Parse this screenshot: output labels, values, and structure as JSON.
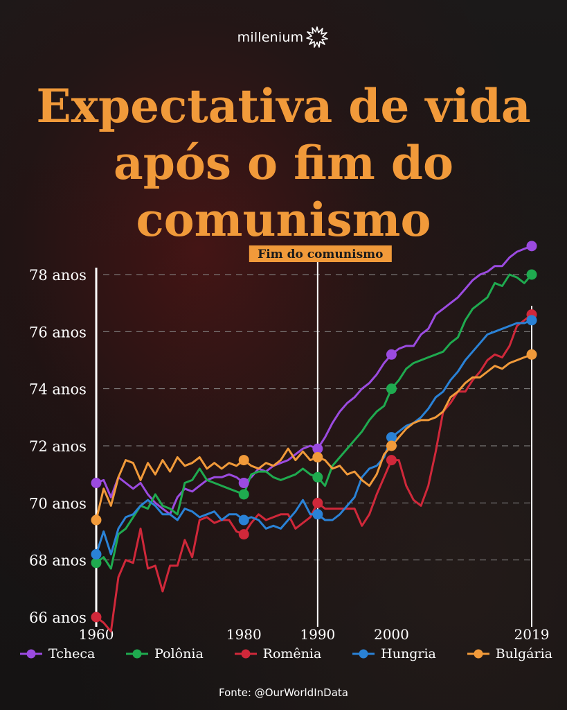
{
  "brand": {
    "name": "millenium",
    "logo_icon": "sunburst-icon"
  },
  "title": {
    "line1": "Expectativa de vida",
    "line2": "após o fim do",
    "line3": "comunismo"
  },
  "source": "Fonte: @OurWorldInData",
  "colors": {
    "title": "#f19a3a",
    "background": "#141212",
    "Tcheca": "#9b4be0",
    "Polônia": "#1faa4f",
    "Romênia": "#d0283a",
    "Hungria": "#2a82d6",
    "Bulgária": "#f19a3a",
    "annotation_bg": "#f19a3a"
  },
  "chart_data": {
    "type": "line",
    "x_ticks": [
      {
        "value": 1960,
        "label": "1960"
      },
      {
        "value": 1980,
        "label": "1980"
      },
      {
        "value": 1990,
        "label": "1990"
      },
      {
        "value": 2000,
        "label": "2000"
      },
      {
        "value": 2019,
        "label": "2019"
      }
    ],
    "y_ticks": [
      {
        "value": 66,
        "label": "66 anos"
      },
      {
        "value": 68,
        "label": "68 anos"
      },
      {
        "value": 70,
        "label": "70 anos"
      },
      {
        "value": 72,
        "label": "72 anos"
      },
      {
        "value": 74,
        "label": "74 anos"
      },
      {
        "value": 76,
        "label": "76 anos"
      },
      {
        "value": 78,
        "label": "78 anos"
      }
    ],
    "xlim": [
      1960,
      2019
    ],
    "ylim": [
      66,
      78
    ],
    "grid": "horizontal dashed",
    "legend_position": "bottom",
    "annotation": {
      "x": 1990,
      "label": "Fim do comunismo"
    },
    "marker_years": [
      1960,
      1980,
      1990,
      2000,
      2019
    ],
    "series": [
      {
        "name": "Tcheca",
        "x": [
          1960,
          1961,
          1962,
          1963,
          1964,
          1965,
          1966,
          1967,
          1968,
          1969,
          1970,
          1971,
          1972,
          1973,
          1974,
          1975,
          1976,
          1977,
          1978,
          1979,
          1980,
          1981,
          1982,
          1983,
          1984,
          1985,
          1986,
          1987,
          1988,
          1989,
          1990,
          1991,
          1992,
          1993,
          1994,
          1995,
          1996,
          1997,
          1998,
          1999,
          2000,
          2001,
          2002,
          2003,
          2004,
          2005,
          2006,
          2007,
          2008,
          2009,
          2010,
          2011,
          2012,
          2013,
          2014,
          2015,
          2016,
          2017,
          2018,
          2019
        ],
        "y": [
          70.7,
          70.8,
          70.2,
          70.9,
          70.7,
          70.5,
          70.7,
          70.3,
          70.0,
          69.8,
          69.6,
          70.2,
          70.5,
          70.4,
          70.6,
          70.8,
          70.9,
          70.9,
          71.0,
          70.9,
          70.7,
          70.9,
          71.2,
          71.1,
          71.3,
          71.4,
          71.5,
          71.7,
          71.9,
          72.0,
          71.9,
          72.3,
          72.8,
          73.2,
          73.5,
          73.7,
          74.0,
          74.2,
          74.5,
          74.9,
          75.2,
          75.4,
          75.5,
          75.5,
          75.9,
          76.1,
          76.6,
          76.8,
          77.0,
          77.2,
          77.5,
          77.8,
          78.0,
          78.1,
          78.3,
          78.3,
          78.6,
          78.8,
          78.9,
          79.0
        ]
      },
      {
        "name": "Polônia",
        "x": [
          1960,
          1961,
          1962,
          1963,
          1964,
          1965,
          1966,
          1967,
          1968,
          1969,
          1970,
          1971,
          1972,
          1973,
          1974,
          1975,
          1976,
          1977,
          1978,
          1979,
          1980,
          1981,
          1982,
          1983,
          1984,
          1985,
          1986,
          1987,
          1988,
          1989,
          1990,
          1991,
          1992,
          1993,
          1994,
          1995,
          1996,
          1997,
          1998,
          1999,
          2000,
          2001,
          2002,
          2003,
          2004,
          2005,
          2006,
          2007,
          2008,
          2009,
          2010,
          2011,
          2012,
          2013,
          2014,
          2015,
          2016,
          2017,
          2018,
          2019
        ],
        "y": [
          67.9,
          68.1,
          67.7,
          68.9,
          69.1,
          69.5,
          69.9,
          69.8,
          70.3,
          69.9,
          69.8,
          69.6,
          70.7,
          70.8,
          71.2,
          70.8,
          70.7,
          70.6,
          70.5,
          70.4,
          70.3,
          71.0,
          71.1,
          71.1,
          70.9,
          70.8,
          70.9,
          71.0,
          71.2,
          71.0,
          70.9,
          70.6,
          71.3,
          71.6,
          71.9,
          72.2,
          72.5,
          72.9,
          73.2,
          73.4,
          74.0,
          74.3,
          74.7,
          74.9,
          75.0,
          75.1,
          75.2,
          75.3,
          75.6,
          75.8,
          76.4,
          76.8,
          77.0,
          77.2,
          77.7,
          77.6,
          78.0,
          77.9,
          77.7,
          78.0
        ]
      },
      {
        "name": "Romênia",
        "x": [
          1960,
          1961,
          1962,
          1963,
          1964,
          1965,
          1966,
          1967,
          1968,
          1969,
          1970,
          1971,
          1972,
          1973,
          1974,
          1975,
          1976,
          1977,
          1978,
          1979,
          1980,
          1981,
          1982,
          1983,
          1984,
          1985,
          1986,
          1987,
          1988,
          1989,
          1990,
          1991,
          1992,
          1993,
          1994,
          1995,
          1996,
          1997,
          1998,
          1999,
          2000,
          2001,
          2002,
          2003,
          2004,
          2005,
          2006,
          2007,
          2008,
          2009,
          2010,
          2011,
          2012,
          2013,
          2014,
          2015,
          2016,
          2017,
          2018,
          2019
        ],
        "y": [
          66.0,
          65.8,
          65.5,
          67.4,
          68.0,
          67.9,
          69.1,
          67.7,
          67.8,
          66.9,
          67.8,
          67.8,
          68.7,
          68.1,
          69.4,
          69.5,
          69.3,
          69.4,
          69.4,
          69.0,
          68.9,
          69.3,
          69.6,
          69.4,
          69.5,
          69.6,
          69.6,
          69.1,
          69.3,
          69.5,
          70.0,
          69.8,
          69.8,
          69.8,
          69.8,
          69.8,
          69.2,
          69.6,
          70.3,
          70.9,
          71.5,
          71.5,
          70.6,
          70.1,
          69.9,
          70.6,
          71.8,
          73.2,
          73.5,
          73.9,
          73.9,
          74.3,
          74.6,
          75.0,
          75.2,
          75.1,
          75.5,
          76.2,
          76.4,
          76.6
        ]
      },
      {
        "name": "Hungria",
        "x": [
          1960,
          1961,
          1962,
          1963,
          1964,
          1965,
          1966,
          1967,
          1968,
          1969,
          1970,
          1971,
          1972,
          1973,
          1974,
          1975,
          1976,
          1977,
          1978,
          1979,
          1980,
          1981,
          1982,
          1983,
          1984,
          1985,
          1986,
          1987,
          1988,
          1989,
          1990,
          1991,
          1992,
          1993,
          1994,
          1995,
          1996,
          1997,
          1998,
          1999,
          2000,
          2001,
          2002,
          2003,
          2004,
          2005,
          2006,
          2007,
          2008,
          2009,
          2010,
          2011,
          2012,
          2013,
          2014,
          2015,
          2016,
          2017,
          2018,
          2019
        ],
        "y": [
          68.2,
          69.0,
          68.2,
          69.1,
          69.5,
          69.6,
          69.9,
          70.1,
          69.9,
          69.6,
          69.6,
          69.4,
          69.8,
          69.7,
          69.5,
          69.6,
          69.7,
          69.4,
          69.6,
          69.6,
          69.4,
          69.5,
          69.4,
          69.1,
          69.2,
          69.1,
          69.4,
          69.7,
          70.1,
          69.6,
          69.6,
          69.4,
          69.4,
          69.6,
          69.9,
          70.2,
          70.9,
          71.2,
          71.3,
          71.6,
          72.3,
          72.5,
          72.7,
          72.8,
          73.0,
          73.3,
          73.7,
          73.9,
          74.3,
          74.6,
          75.0,
          75.3,
          75.6,
          75.9,
          76.0,
          76.1,
          76.2,
          76.3,
          76.3,
          76.4
        ]
      },
      {
        "name": "Bulgária",
        "x": [
          1960,
          1961,
          1962,
          1963,
          1964,
          1965,
          1966,
          1967,
          1968,
          1969,
          1970,
          1971,
          1972,
          1973,
          1974,
          1975,
          1976,
          1977,
          1978,
          1979,
          1980,
          1981,
          1982,
          1983,
          1984,
          1985,
          1986,
          1987,
          1988,
          1989,
          1990,
          1991,
          1992,
          1993,
          1994,
          1995,
          1996,
          1997,
          1998,
          1999,
          2000,
          2001,
          2002,
          2003,
          2004,
          2005,
          2006,
          2007,
          2008,
          2009,
          2010,
          2011,
          2012,
          2013,
          2014,
          2015,
          2016,
          2017,
          2018,
          2019
        ],
        "y": [
          69.4,
          70.5,
          69.9,
          70.9,
          71.5,
          71.4,
          70.8,
          71.4,
          71.0,
          71.5,
          71.1,
          71.6,
          71.3,
          71.4,
          71.6,
          71.2,
          71.4,
          71.2,
          71.4,
          71.3,
          71.5,
          71.3,
          71.2,
          71.4,
          71.3,
          71.5,
          71.9,
          71.5,
          71.8,
          71.5,
          71.6,
          71.5,
          71.2,
          71.3,
          71.0,
          71.1,
          70.8,
          70.6,
          71.0,
          71.7,
          72.0,
          72.3,
          72.6,
          72.8,
          72.9,
          72.9,
          73.0,
          73.2,
          73.7,
          73.9,
          74.2,
          74.4,
          74.4,
          74.6,
          74.8,
          74.7,
          74.9,
          75.0,
          75.1,
          75.2
        ]
      }
    ]
  }
}
